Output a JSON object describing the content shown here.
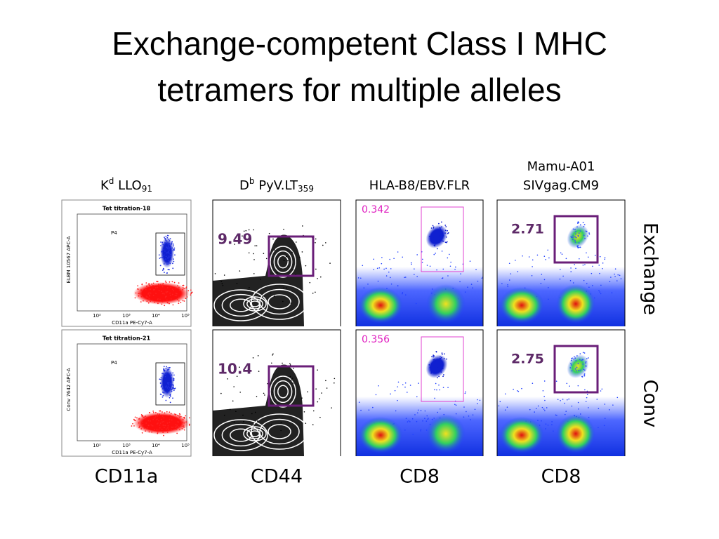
{
  "title": [
    "Exchange-competent Class I MHC",
    "tetramers for multiple alleles"
  ],
  "columns": [
    {
      "header": {
        "base": "K",
        "sup": "d",
        "text": " LLO",
        "sub": "91"
      },
      "x_label": "CD11a",
      "panels": [
        {
          "title": "Tet titration-18",
          "gate": "P4",
          "y_axis": "ELBM 10567 APC-A",
          "x_axis": "CD11a PE-Cy7-A"
        },
        {
          "title": "Tet titration-21",
          "gate": "P4",
          "y_axis": "Conv 7642 APC-A",
          "x_axis": "CD11a PE-Cy7-A"
        }
      ],
      "x_ticks": [
        "10²",
        "10³",
        "10⁴",
        "10⁵"
      ]
    },
    {
      "header": {
        "base": "D",
        "sup": "b",
        "text": " PyV.LT",
        "sub": "359"
      },
      "x_label": "CD44",
      "gates": [
        9.49,
        10.4
      ]
    },
    {
      "header": {
        "lines": [
          "HLA-B8/EBV.FLR"
        ]
      },
      "x_label": "CD8",
      "gates": [
        0.342,
        0.356
      ]
    },
    {
      "header": {
        "lines": [
          "Mamu-A01",
          "SIVgag.CM9"
        ]
      },
      "x_label": "CD8",
      "gates": [
        2.71,
        2.75
      ]
    }
  ],
  "row_labels": [
    "Exchange",
    "Conv"
  ]
}
